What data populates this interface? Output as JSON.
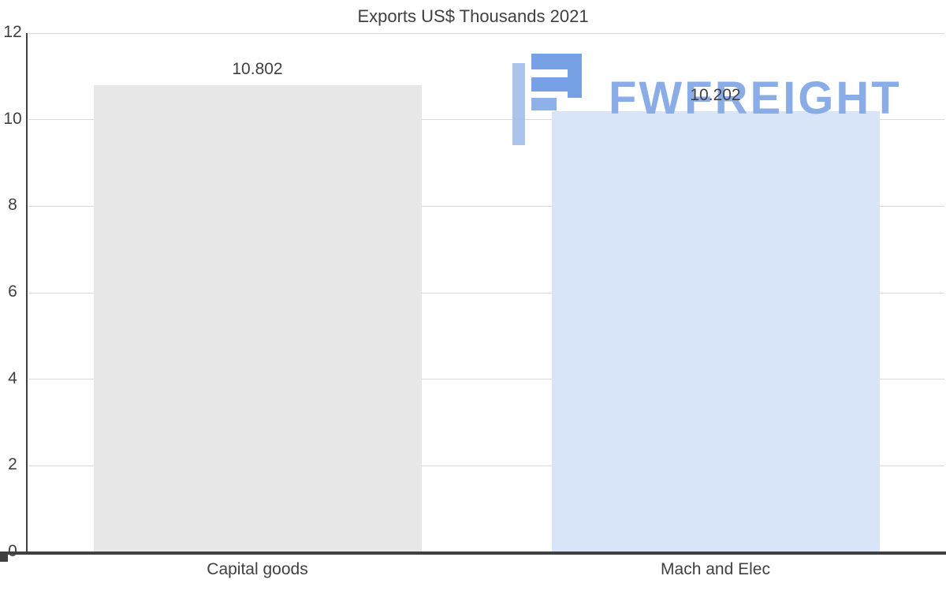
{
  "title": "Exports US$ Thousands 2021",
  "watermark": {
    "name": "fwfreight-logo",
    "text": "FWFREIGHT",
    "icon_color_dark": "#6f9ce4",
    "icon_color_light": "#a6c1ee",
    "text_color": "#84a9e6"
  },
  "colors": {
    "background": "#ffffff",
    "grid": "#d9d9d9",
    "axis": "#404040",
    "text": "#404040"
  },
  "chart_data": {
    "type": "bar",
    "title": "Exports US$ Thousands 2021",
    "categories": [
      "Capital goods",
      "Mach and Elec"
    ],
    "values": [
      10.802,
      10.202
    ],
    "value_labels": [
      "10.802",
      "10.202"
    ],
    "bar_colors": [
      "#e7e7e7",
      "#d8e5f9"
    ],
    "xlabel": "",
    "ylabel": "",
    "ylim": [
      0,
      12
    ],
    "yticks": [
      0,
      2,
      4,
      6,
      8,
      10,
      12
    ],
    "grid": true,
    "legend": false
  }
}
